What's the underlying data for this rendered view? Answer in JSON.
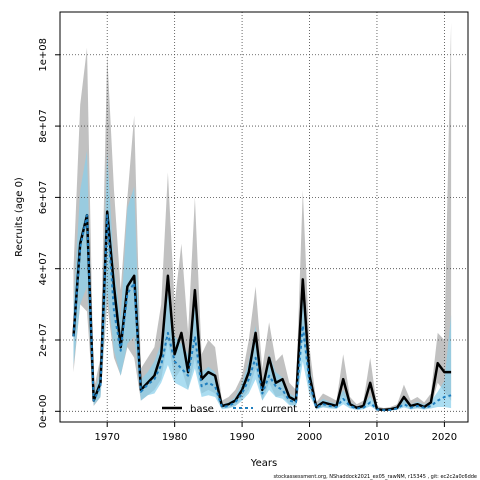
{
  "chart_data": {
    "type": "line",
    "xlabel": "Years",
    "ylabel": "Recruits (age 0)",
    "xlim": [
      1963,
      2023.5
    ],
    "ylim": [
      -3000000,
      112000000
    ],
    "xticks": [
      1970,
      1980,
      1990,
      2000,
      2010,
      2020
    ],
    "yticks": [
      0,
      20000000,
      40000000,
      60000000,
      80000000,
      100000000
    ],
    "ytick_labels": [
      "0e+00",
      "2e+07",
      "4e+07",
      "6e+07",
      "8e+07",
      "1e+08"
    ],
    "grid": true,
    "legend_position": "bottom-center",
    "footer": "stockassessment.org, NShaddock2021_ex05_rawNM, r15345 ,  git: ec2c2a0c6dde",
    "x": [
      1965,
      1966,
      1967,
      1968,
      1969,
      1970,
      1971,
      1972,
      1973,
      1974,
      1975,
      1976,
      1977,
      1978,
      1979,
      1980,
      1981,
      1982,
      1983,
      1984,
      1985,
      1986,
      1987,
      1988,
      1989,
      1990,
      1991,
      1992,
      1993,
      1994,
      1995,
      1996,
      1997,
      1998,
      1999,
      2000,
      2001,
      2002,
      2003,
      2004,
      2005,
      2006,
      2007,
      2008,
      2009,
      2010,
      2011,
      2012,
      2013,
      2014,
      2015,
      2016,
      2017,
      2018,
      2019,
      2020,
      2021
    ],
    "series": [
      {
        "name": "base",
        "color": "#000000",
        "band_color": "#bebebe",
        "values": [
          21000000,
          47000000,
          55000000,
          3000000,
          8000000,
          56000000,
          35000000,
          18000000,
          35000000,
          38000000,
          6000000,
          8000000,
          10000000,
          16000000,
          38000000,
          16000000,
          22000000,
          11000000,
          34000000,
          9000000,
          11000000,
          10000000,
          1500000,
          2000000,
          3000000,
          6000000,
          11000000,
          22000000,
          6000000,
          15000000,
          8000000,
          9000000,
          4000000,
          3000000,
          37000000,
          10000000,
          1200000,
          2500000,
          2000000,
          1500000,
          9000000,
          2000000,
          1000000,
          1500000,
          8000000,
          600000,
          400000,
          600000,
          1000000,
          4000000,
          1500000,
          2000000,
          1200000,
          2500000,
          13500000,
          11000000,
          11000000
        ],
        "lower": [
          11000000,
          30000000,
          28000000,
          1500000,
          4000000,
          30000000,
          15000000,
          10000000,
          18000000,
          15000000,
          3000000,
          4500000,
          6000000,
          9000000,
          20000000,
          9000000,
          12000000,
          6000000,
          15000000,
          5000000,
          6000000,
          5000000,
          800000,
          1000000,
          1500000,
          3500000,
          6000000,
          12000000,
          3000000,
          8000000,
          4000000,
          4500000,
          2000000,
          1500000,
          22000000,
          5000000,
          600000,
          1200000,
          1000000,
          800000,
          4500000,
          1000000,
          500000,
          800000,
          4000000,
          300000,
          200000,
          300000,
          500000,
          2000000,
          700000,
          1000000,
          600000,
          1200000,
          8000000,
          5500000,
          3000000
        ],
        "upper": [
          40000000,
          86000000,
          102000000,
          6000000,
          15000000,
          100000000,
          62000000,
          34000000,
          60000000,
          83000000,
          12000000,
          15000000,
          18000000,
          30000000,
          67000000,
          30000000,
          47000000,
          22000000,
          60000000,
          16000000,
          20000000,
          18000000,
          3000000,
          4000000,
          6000000,
          10000000,
          20000000,
          35000000,
          12000000,
          25000000,
          14000000,
          16000000,
          8000000,
          6000000,
          62000000,
          18000000,
          2500000,
          5000000,
          4000000,
          3000000,
          16000000,
          4000000,
          2000000,
          3000000,
          15000000,
          1500000,
          900000,
          1200000,
          2000000,
          7500000,
          3000000,
          4000000,
          2500000,
          5000000,
          22000000,
          20000000,
          109000000
        ]
      },
      {
        "name": "current",
        "color": "#1e7ebf",
        "band_color": "#87ceeb",
        "values": [
          21000000,
          46000000,
          55000000,
          3000000,
          7000000,
          55000000,
          28000000,
          17000000,
          33000000,
          36000000,
          5500000,
          7500000,
          9000000,
          13000000,
          22000000,
          14000000,
          12000000,
          10000000,
          21000000,
          7000000,
          8000000,
          7000000,
          1200000,
          1500000,
          2500000,
          5000000,
          9000000,
          15000000,
          5000000,
          10000000,
          7000000,
          6000000,
          3000000,
          2500000,
          24000000,
          8000000,
          1000000,
          2000000,
          1500000,
          1200000,
          3500000,
          1500000,
          800000,
          1000000,
          2500000,
          500000,
          300000,
          400000,
          800000,
          2000000,
          1000000,
          1500000,
          1000000,
          1500000,
          3000000,
          4000000,
          4500000
        ],
        "lower": [
          13000000,
          30000000,
          35000000,
          1800000,
          4000000,
          34000000,
          17000000,
          10000000,
          19000000,
          21000000,
          3000000,
          4500000,
          5000000,
          8000000,
          13000000,
          8000000,
          7000000,
          6000000,
          12000000,
          4000000,
          4500000,
          4000000,
          600000,
          800000,
          1400000,
          3000000,
          5000000,
          9000000,
          3000000,
          6000000,
          4000000,
          3500000,
          1700000,
          1500000,
          14000000,
          4500000,
          500000,
          1100000,
          800000,
          650000,
          2000000,
          800000,
          400000,
          550000,
          1400000,
          250000,
          150000,
          200000,
          400000,
          1100000,
          500000,
          800000,
          500000,
          800000,
          1200000,
          1200000,
          900000
        ],
        "upper": [
          30000000,
          62000000,
          73000000,
          5000000,
          11000000,
          73000000,
          40000000,
          26000000,
          57000000,
          63000000,
          9000000,
          11000000,
          14000000,
          19000000,
          33000000,
          21000000,
          19000000,
          16000000,
          32000000,
          11000000,
          12500000,
          11000000,
          2000000,
          2500000,
          4000000,
          8000000,
          14000000,
          24000000,
          8000000,
          16000000,
          11000000,
          9500000,
          5000000,
          4000000,
          37000000,
          13000000,
          1800000,
          3500000,
          2600000,
          2100000,
          6000000,
          2600000,
          1400000,
          1800000,
          4400000,
          900000,
          600000,
          800000,
          1500000,
          3600000,
          1900000,
          2700000,
          1900000,
          2800000,
          5500000,
          8500000,
          27000000
        ]
      }
    ]
  }
}
